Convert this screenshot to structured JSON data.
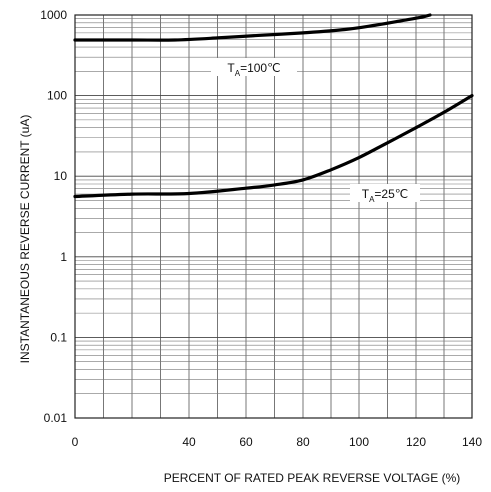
{
  "chart_data": {
    "type": "line",
    "xlabel": "PERCENT OF RATED PEAK REVERSE VOLTAGE (%)",
    "ylabel": "INSTANTANEOUS REVERSE CURRENT (uA)",
    "x_scale": "linear",
    "y_scale": "log",
    "xlim": [
      0,
      140
    ],
    "ylim": [
      0.01,
      1000
    ],
    "grid": true,
    "x_ticks": [
      "0",
      "40",
      "60",
      "80",
      "100",
      "120",
      "140"
    ],
    "y_ticks": [
      "1000",
      "100",
      "10",
      "1",
      "0.1",
      "0.01"
    ],
    "series": [
      {
        "name": "TA=100℃",
        "label_main": "T",
        "label_sub": "A",
        "label_rest": "=100℃",
        "x": [
          0,
          20,
          35,
          50,
          65,
          80,
          95,
          105,
          115,
          122,
          125
        ],
        "y": [
          490,
          490,
          490,
          520,
          560,
          600,
          660,
          740,
          850,
          940,
          1000
        ]
      },
      {
        "name": "TA=25℃",
        "label_main": "T",
        "label_sub": "A",
        "label_rest": "=25℃",
        "x": [
          0,
          20,
          40,
          60,
          70,
          80,
          90,
          100,
          110,
          120,
          130,
          140
        ],
        "y": [
          5.6,
          6.0,
          6.1,
          7.1,
          7.8,
          9.0,
          12.0,
          17.0,
          26.0,
          40.0,
          62.0,
          100.0
        ]
      }
    ]
  }
}
